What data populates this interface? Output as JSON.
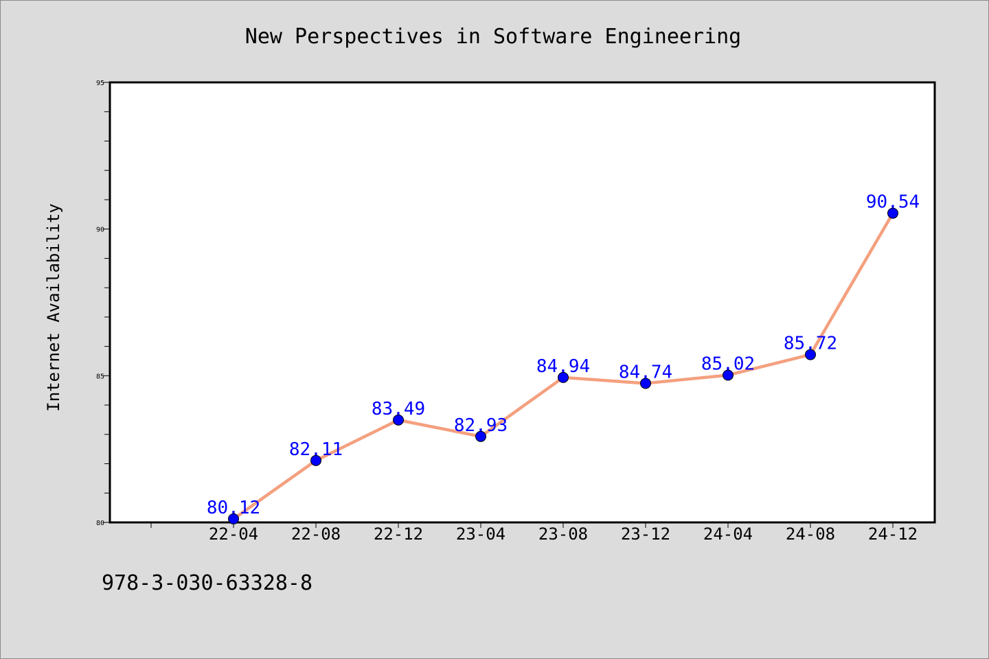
{
  "colors": {
    "background": "#dcdcdc",
    "plot_background": "#ffffff",
    "line": "#f4a07f",
    "marker": "#0000ff",
    "data_label": "#0000ff"
  },
  "footer": {
    "code": "978-3-030-63328-8"
  },
  "chart_data": {
    "type": "line",
    "title": "New Perspectives in Software Engineering",
    "xlabel": "",
    "ylabel": "Internet Availability",
    "categories": [
      "22-04",
      "22-08",
      "22-12",
      "23-04",
      "23-08",
      "23-12",
      "24-04",
      "24-08",
      "24-12"
    ],
    "series": [
      {
        "values": [
          80.12,
          82.11,
          83.49,
          82.93,
          84.94,
          84.74,
          85.02,
          85.72,
          90.54
        ],
        "labels": [
          "80.12",
          "82.11",
          "83.49",
          "82.93",
          "84.94",
          "84.74",
          "85.02",
          "85.72",
          "90.54"
        ]
      }
    ],
    "ylim": [
      80,
      95
    ],
    "yticks": [
      80,
      85,
      90,
      95
    ],
    "ytick_labels": [
      "80",
      "85",
      "90",
      "95"
    ],
    "grid": false,
    "legend": "none"
  }
}
